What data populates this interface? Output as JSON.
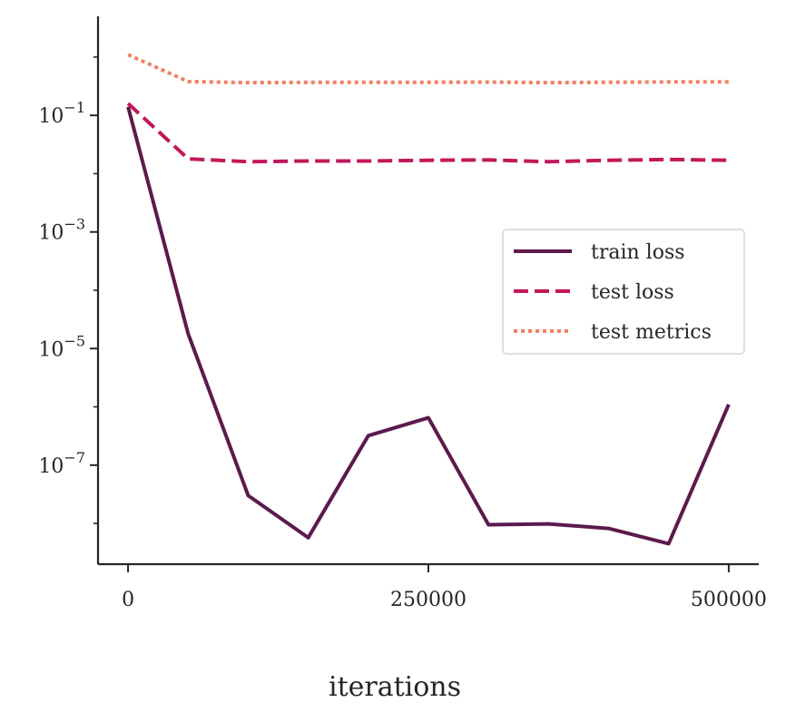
{
  "chart_data": {
    "type": "line",
    "title": "",
    "xlabel": "iterations",
    "ylabel": "",
    "yscale": "log",
    "xlim": [
      -25000,
      525000
    ],
    "ylim": [
      2e-09,
      5
    ],
    "grid": false,
    "legend_position": "right",
    "x": [
      0,
      50000,
      100000,
      150000,
      200000,
      250000,
      300000,
      350000,
      400000,
      450000,
      500000
    ],
    "xticks": [
      {
        "value": 0,
        "label": "0"
      },
      {
        "value": 250000,
        "label": "250000"
      },
      {
        "value": 500000,
        "label": "500000"
      }
    ],
    "yticks": [
      {
        "value": 0.1,
        "base": "10",
        "exp": "−1"
      },
      {
        "value": 0.001,
        "base": "10",
        "exp": "−3"
      },
      {
        "value": 1e-05,
        "base": "10",
        "exp": "−5"
      },
      {
        "value": 1e-07,
        "base": "10",
        "exp": "−7"
      }
    ],
    "series": [
      {
        "name": "train loss",
        "style": "solid",
        "color": "#5c1a4e",
        "values": [
          0.14,
          1.8e-05,
          3e-08,
          5.7e-09,
          3.2e-07,
          6.5e-07,
          9.5e-09,
          9.8e-09,
          8.2e-09,
          4.5e-09,
          1.1e-06
        ]
      },
      {
        "name": "test loss",
        "style": "dashed",
        "color": "#c2185b",
        "values": [
          0.16,
          0.018,
          0.016,
          0.0165,
          0.0165,
          0.017,
          0.0172,
          0.016,
          0.017,
          0.0175,
          0.017
        ]
      },
      {
        "name": "test metrics",
        "style": "dotted",
        "color": "#f08060",
        "values": [
          1.1,
          0.38,
          0.365,
          0.368,
          0.37,
          0.37,
          0.372,
          0.365,
          0.37,
          0.375,
          0.375
        ]
      }
    ]
  }
}
